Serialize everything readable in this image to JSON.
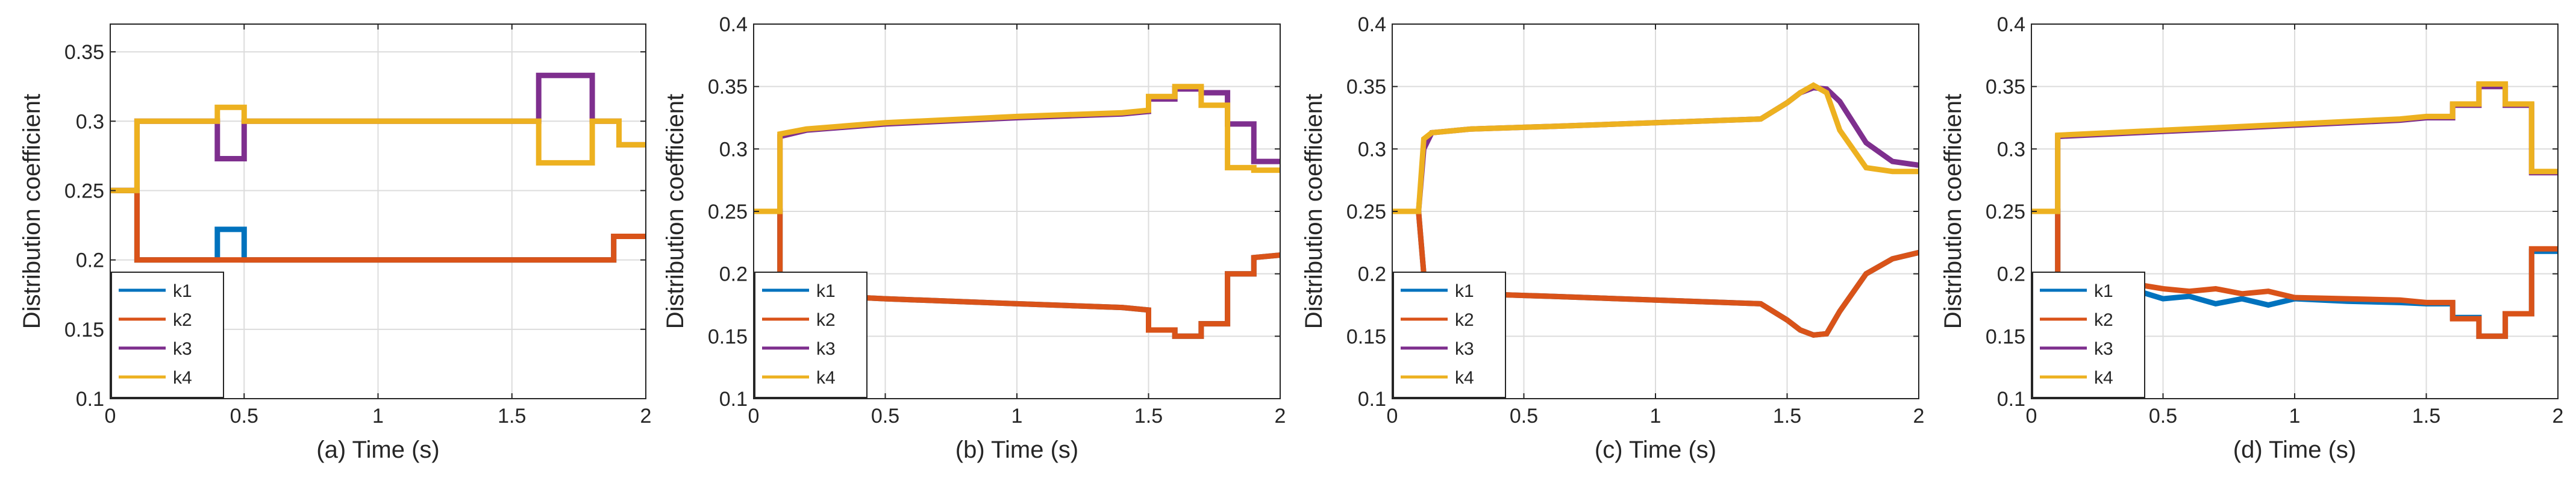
{
  "colors": {
    "k1": "#0072BD",
    "k2": "#D95319",
    "k3": "#7E2F8E",
    "k4": "#EDB120"
  },
  "chart_data": [
    {
      "type": "line",
      "xlabel": "(a) Time (s)",
      "ylabel": "Distribution coefficient",
      "xlim": [
        0,
        2
      ],
      "ylim": [
        0.1,
        0.37
      ],
      "xticks": [
        "0",
        "0.5",
        "1",
        "1.5",
        "2"
      ],
      "xtick_values": [
        0,
        0.5,
        1,
        1.5,
        2
      ],
      "yticks": [
        "0.1",
        "0.15",
        "0.2",
        "0.25",
        "0.3",
        "0.35"
      ],
      "ytick_values": [
        0.1,
        0.15,
        0.2,
        0.25,
        0.3,
        0.35
      ],
      "grid": true,
      "legend_position": "bottom-left",
      "series": [
        {
          "name": "k1",
          "x": [
            0,
            0.1,
            0.1,
            0.4,
            0.4,
            0.5,
            0.5,
            1.88,
            1.88,
            2.0
          ],
          "y": [
            0.25,
            0.25,
            0.2,
            0.2,
            0.222,
            0.222,
            0.2,
            0.2,
            0.217,
            0.217
          ]
        },
        {
          "name": "k2",
          "x": [
            0,
            0.1,
            0.1,
            1.88,
            1.88,
            2.0
          ],
          "y": [
            0.25,
            0.25,
            0.2,
            0.2,
            0.217,
            0.217
          ]
        },
        {
          "name": "k3",
          "x": [
            0,
            0.1,
            0.1,
            0.4,
            0.4,
            0.5,
            0.5,
            1.6,
            1.6,
            1.8,
            1.8,
            1.9,
            1.9,
            2.0
          ],
          "y": [
            0.25,
            0.25,
            0.3,
            0.3,
            0.273,
            0.273,
            0.3,
            0.3,
            0.333,
            0.333,
            0.3,
            0.3,
            0.283,
            0.283
          ]
        },
        {
          "name": "k4",
          "x": [
            0,
            0.1,
            0.1,
            0.4,
            0.4,
            0.5,
            0.5,
            1.6,
            1.6,
            1.8,
            1.8,
            1.9,
            1.9,
            2.0
          ],
          "y": [
            0.25,
            0.25,
            0.3,
            0.3,
            0.31,
            0.31,
            0.3,
            0.3,
            0.27,
            0.27,
            0.3,
            0.3,
            0.283,
            0.283
          ]
        }
      ]
    },
    {
      "type": "line",
      "xlabel": "(b) Time (s)",
      "ylabel": "Distribution coefficient",
      "xlim": [
        0,
        2
      ],
      "ylim": [
        0.1,
        0.4
      ],
      "xticks": [
        "0",
        "0.5",
        "1",
        "1.5",
        "2"
      ],
      "xtick_values": [
        0,
        0.5,
        1,
        1.5,
        2
      ],
      "yticks": [
        "0.1",
        "0.15",
        "0.2",
        "0.25",
        "0.3",
        "0.35",
        "0.4"
      ],
      "ytick_values": [
        0.1,
        0.15,
        0.2,
        0.25,
        0.3,
        0.35,
        0.4
      ],
      "grid": true,
      "legend_position": "bottom-left",
      "series": [
        {
          "name": "k1",
          "x": [
            0,
            0.1,
            0.1,
            0.2,
            0.5,
            1.0,
            1.4,
            1.5,
            1.5,
            1.6,
            1.6,
            1.7,
            1.7,
            1.8,
            1.8,
            1.9,
            1.9,
            2.0
          ],
          "y": [
            0.25,
            0.25,
            0.18,
            0.183,
            0.18,
            0.176,
            0.173,
            0.171,
            0.155,
            0.155,
            0.15,
            0.15,
            0.16,
            0.16,
            0.2,
            0.2,
            0.213,
            0.215
          ]
        },
        {
          "name": "k2",
          "x": [
            0,
            0.1,
            0.1,
            0.2,
            0.5,
            1.0,
            1.4,
            1.5,
            1.5,
            1.6,
            1.6,
            1.7,
            1.7,
            1.8,
            1.8,
            1.9,
            1.9,
            2.0
          ],
          "y": [
            0.25,
            0.25,
            0.18,
            0.183,
            0.18,
            0.176,
            0.173,
            0.171,
            0.155,
            0.155,
            0.15,
            0.15,
            0.16,
            0.16,
            0.2,
            0.2,
            0.213,
            0.215
          ]
        },
        {
          "name": "k3",
          "x": [
            0,
            0.1,
            0.1,
            0.2,
            0.5,
            1.0,
            1.4,
            1.5,
            1.5,
            1.6,
            1.6,
            1.7,
            1.7,
            1.8,
            1.8,
            1.9,
            1.9,
            2.0
          ],
          "y": [
            0.25,
            0.25,
            0.31,
            0.315,
            0.32,
            0.325,
            0.328,
            0.33,
            0.34,
            0.34,
            0.348,
            0.348,
            0.345,
            0.345,
            0.32,
            0.32,
            0.29,
            0.29
          ]
        },
        {
          "name": "k4",
          "x": [
            0,
            0.1,
            0.1,
            0.2,
            0.5,
            1.0,
            1.4,
            1.5,
            1.5,
            1.6,
            1.6,
            1.7,
            1.7,
            1.8,
            1.8,
            1.9,
            1.9,
            2.0
          ],
          "y": [
            0.25,
            0.25,
            0.312,
            0.316,
            0.321,
            0.326,
            0.329,
            0.331,
            0.342,
            0.342,
            0.35,
            0.35,
            0.335,
            0.335,
            0.285,
            0.285,
            0.283,
            0.283
          ]
        }
      ]
    },
    {
      "type": "line",
      "xlabel": "(c) Time (s)",
      "ylabel": "Distribution coefficient",
      "xlim": [
        0,
        2
      ],
      "ylim": [
        0.1,
        0.4
      ],
      "xticks": [
        "0",
        "0.5",
        "1",
        "1.5",
        "2"
      ],
      "xtick_values": [
        0,
        0.5,
        1,
        1.5,
        2
      ],
      "yticks": [
        "0.1",
        "0.15",
        "0.2",
        "0.25",
        "0.3",
        "0.35",
        "0.4"
      ],
      "ytick_values": [
        0.1,
        0.15,
        0.2,
        0.25,
        0.3,
        0.35,
        0.4
      ],
      "grid": true,
      "legend_position": "bottom-left",
      "series": [
        {
          "name": "k1",
          "x": [
            0,
            0.1,
            0.12,
            0.15,
            0.3,
            0.6,
            1.0,
            1.4,
            1.5,
            1.55,
            1.6,
            1.65,
            1.7,
            1.8,
            1.9,
            2.0
          ],
          "y": [
            0.25,
            0.25,
            0.2,
            0.186,
            0.184,
            0.182,
            0.179,
            0.176,
            0.163,
            0.155,
            0.151,
            0.152,
            0.17,
            0.2,
            0.212,
            0.217
          ]
        },
        {
          "name": "k2",
          "x": [
            0,
            0.1,
            0.12,
            0.15,
            0.3,
            0.6,
            1.0,
            1.4,
            1.5,
            1.55,
            1.6,
            1.65,
            1.7,
            1.8,
            1.9,
            2.0
          ],
          "y": [
            0.25,
            0.25,
            0.2,
            0.186,
            0.184,
            0.182,
            0.179,
            0.176,
            0.163,
            0.155,
            0.151,
            0.152,
            0.17,
            0.2,
            0.212,
            0.217
          ]
        },
        {
          "name": "k3",
          "x": [
            0,
            0.1,
            0.12,
            0.15,
            0.3,
            0.6,
            1.0,
            1.4,
            1.5,
            1.55,
            1.6,
            1.65,
            1.7,
            1.8,
            1.9,
            2.0
          ],
          "y": [
            0.25,
            0.25,
            0.3,
            0.313,
            0.316,
            0.318,
            0.321,
            0.324,
            0.337,
            0.345,
            0.349,
            0.348,
            0.338,
            0.305,
            0.29,
            0.287
          ]
        },
        {
          "name": "k4",
          "x": [
            0,
            0.1,
            0.12,
            0.15,
            0.3,
            0.6,
            1.0,
            1.4,
            1.5,
            1.55,
            1.6,
            1.65,
            1.7,
            1.8,
            1.9,
            2.0
          ],
          "y": [
            0.25,
            0.25,
            0.308,
            0.313,
            0.316,
            0.318,
            0.321,
            0.324,
            0.337,
            0.345,
            0.351,
            0.345,
            0.315,
            0.285,
            0.282,
            0.282
          ]
        }
      ]
    },
    {
      "type": "line",
      "xlabel": "(d) Time (s)",
      "ylabel": "Distribution coefficient",
      "xlim": [
        0,
        2
      ],
      "ylim": [
        0.1,
        0.4
      ],
      "xticks": [
        "0",
        "0.5",
        "1",
        "1.5",
        "2"
      ],
      "xtick_values": [
        0,
        0.5,
        1,
        1.5,
        2
      ],
      "yticks": [
        "0.1",
        "0.15",
        "0.2",
        "0.25",
        "0.3",
        "0.35",
        "0.4"
      ],
      "ytick_values": [
        0.1,
        0.15,
        0.2,
        0.25,
        0.3,
        0.35,
        0.4
      ],
      "grid": true,
      "legend_position": "bottom-left",
      "series": [
        {
          "name": "k1",
          "x": [
            0,
            0.1,
            0.1,
            0.3,
            0.5,
            0.6,
            0.7,
            0.8,
            0.9,
            1.0,
            1.2,
            1.4,
            1.5,
            1.6,
            1.6,
            1.7,
            1.7,
            1.8,
            1.8,
            1.9,
            1.9,
            2.0
          ],
          "y": [
            0.25,
            0.25,
            0.193,
            0.193,
            0.18,
            0.182,
            0.176,
            0.18,
            0.175,
            0.18,
            0.178,
            0.177,
            0.176,
            0.176,
            0.165,
            0.165,
            0.15,
            0.15,
            0.168,
            0.168,
            0.218,
            0.218
          ]
        },
        {
          "name": "k2",
          "x": [
            0,
            0.1,
            0.1,
            0.3,
            0.5,
            0.6,
            0.7,
            0.8,
            0.9,
            1.0,
            1.2,
            1.4,
            1.5,
            1.6,
            1.6,
            1.7,
            1.7,
            1.8,
            1.8,
            1.9,
            1.9,
            2.0
          ],
          "y": [
            0.25,
            0.25,
            0.195,
            0.195,
            0.188,
            0.186,
            0.188,
            0.184,
            0.186,
            0.181,
            0.18,
            0.179,
            0.177,
            0.177,
            0.164,
            0.164,
            0.15,
            0.15,
            0.168,
            0.168,
            0.22,
            0.22
          ]
        },
        {
          "name": "k3",
          "x": [
            0,
            0.1,
            0.1,
            0.3,
            0.5,
            0.7,
            1.0,
            1.2,
            1.4,
            1.5,
            1.6,
            1.6,
            1.7,
            1.7,
            1.8,
            1.8,
            1.9,
            1.9,
            2.0
          ],
          "y": [
            0.25,
            0.25,
            0.31,
            0.312,
            0.314,
            0.316,
            0.319,
            0.321,
            0.323,
            0.325,
            0.325,
            0.335,
            0.335,
            0.35,
            0.35,
            0.335,
            0.335,
            0.281,
            0.281
          ]
        },
        {
          "name": "k4",
          "x": [
            0,
            0.1,
            0.1,
            0.3,
            0.5,
            0.7,
            1.0,
            1.2,
            1.4,
            1.5,
            1.6,
            1.6,
            1.7,
            1.7,
            1.8,
            1.8,
            1.9,
            1.9,
            2.0
          ],
          "y": [
            0.25,
            0.25,
            0.311,
            0.313,
            0.315,
            0.317,
            0.32,
            0.322,
            0.324,
            0.326,
            0.326,
            0.336,
            0.336,
            0.352,
            0.352,
            0.336,
            0.336,
            0.282,
            0.282
          ]
        }
      ]
    }
  ]
}
